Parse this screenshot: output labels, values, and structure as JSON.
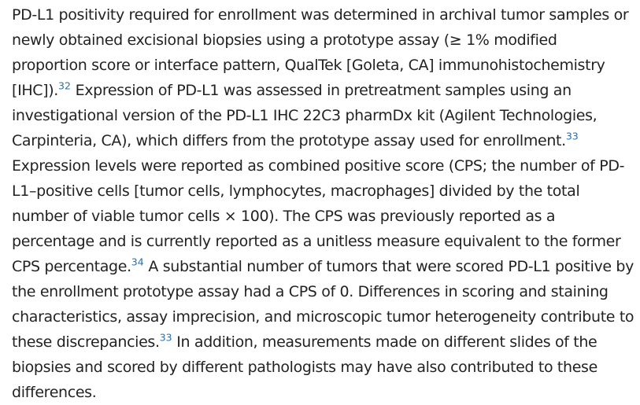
{
  "paragraph": {
    "segments": [
      "PD-L1 positivity required for enrollment was determined in archival tumor samples or newly obtained excisional biopsies using a prototype assay (≥ 1% modified proportion score or interface pattern, QualTek [Goleta, CA] immunohistochemistry [IHC]).",
      " Expression of PD-L1 was assessed in pretreatment samples using an investigational version of the PD-L1 IHC 22C3 pharmDx kit (Agilent Technologies, Carpinteria, CA), which differs from the prototype assay used for enrollment.",
      " Expression levels were reported as combined positive score (CPS; the number of PD-L1–positive cells [tumor cells, lymphocytes, macrophages] divided by the total number of viable tumor cells × 100). The CPS was previously reported as a percentage and is currently reported as a unitless measure equivalent to the former CPS percentage.",
      " A substantial number of tumors that were scored PD-L1 positive by the enrollment prototype assay had a CPS of 0. Differences in scoring and staining characteristics, assay imprecision, and microscopic tumor heterogeneity contribute to these discrepancies.",
      " In addition, measurements made on different slides of the biopsies and scored by different pathologists may have also contributed to these differences."
    ],
    "citations": [
      "32",
      "33",
      "34",
      "33"
    ]
  },
  "colors": {
    "text": "#222222",
    "citation_link": "#2a6db0"
  }
}
